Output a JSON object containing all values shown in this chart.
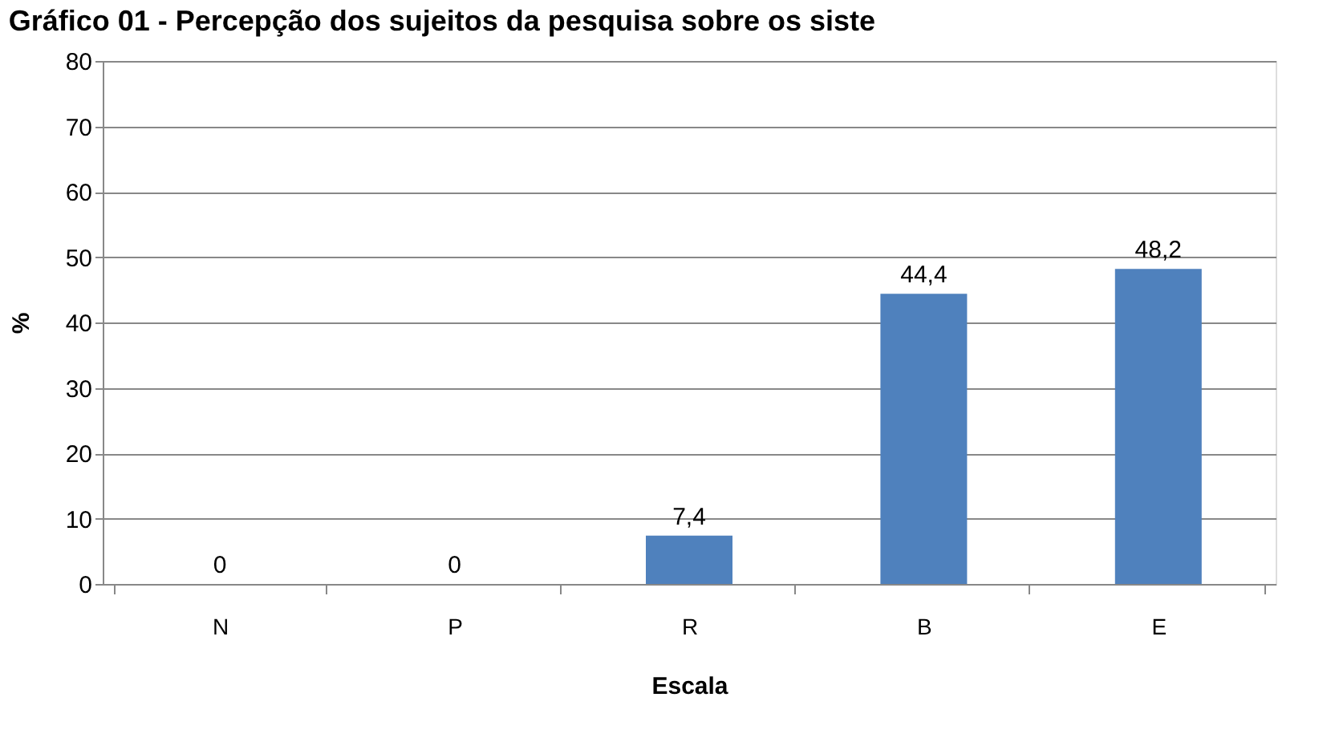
{
  "chart_data": {
    "type": "bar",
    "title": "Gráfico 01 - Percepção dos sujeitos da pesquisa sobre os siste",
    "categories": [
      "N",
      "P",
      "R",
      "B",
      "E"
    ],
    "series": [
      {
        "color": "#4f81bd",
        "values": [
          0,
          0,
          7.4,
          44.4,
          48.2
        ],
        "value_labels": [
          "0",
          "0",
          "7,4",
          "44,4",
          "48,2"
        ]
      }
    ],
    "xlabel": "Escala",
    "ylabel": "%",
    "ylim": [
      0,
      80
    ],
    "yticks": [
      0,
      10,
      20,
      30,
      40,
      50,
      60,
      70,
      80
    ],
    "grid": "y"
  }
}
